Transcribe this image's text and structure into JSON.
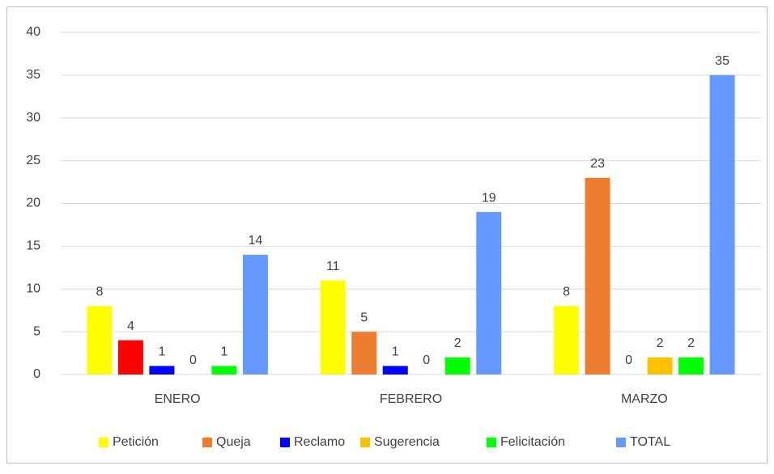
{
  "chart_data": {
    "type": "bar",
    "categories": [
      "ENERO",
      "FEBRERO",
      "MARZO"
    ],
    "series": [
      {
        "name": "Petición",
        "color": "#ffff00",
        "values": [
          8,
          11,
          8
        ]
      },
      {
        "name": "Queja",
        "color": "#ed7d31",
        "colors": [
          "#ff0000",
          "#ed7d31",
          "#ed7d31"
        ],
        "values": [
          4,
          5,
          23
        ]
      },
      {
        "name": "Reclamo",
        "color": "#0000ff",
        "values": [
          1,
          1,
          0
        ]
      },
      {
        "name": "Sugerencia",
        "color": "#ffc000",
        "values": [
          0,
          0,
          2
        ]
      },
      {
        "name": "Felicitación",
        "color": "#00ff00",
        "values": [
          1,
          2,
          2
        ]
      },
      {
        "name": "TOTAL",
        "color": "#6699ff",
        "values": [
          14,
          19,
          35
        ]
      }
    ],
    "ylim": [
      0,
      40
    ],
    "yticks": [
      0,
      5,
      10,
      15,
      20,
      25,
      30,
      35,
      40
    ],
    "grid": true,
    "legend": "bottom"
  }
}
